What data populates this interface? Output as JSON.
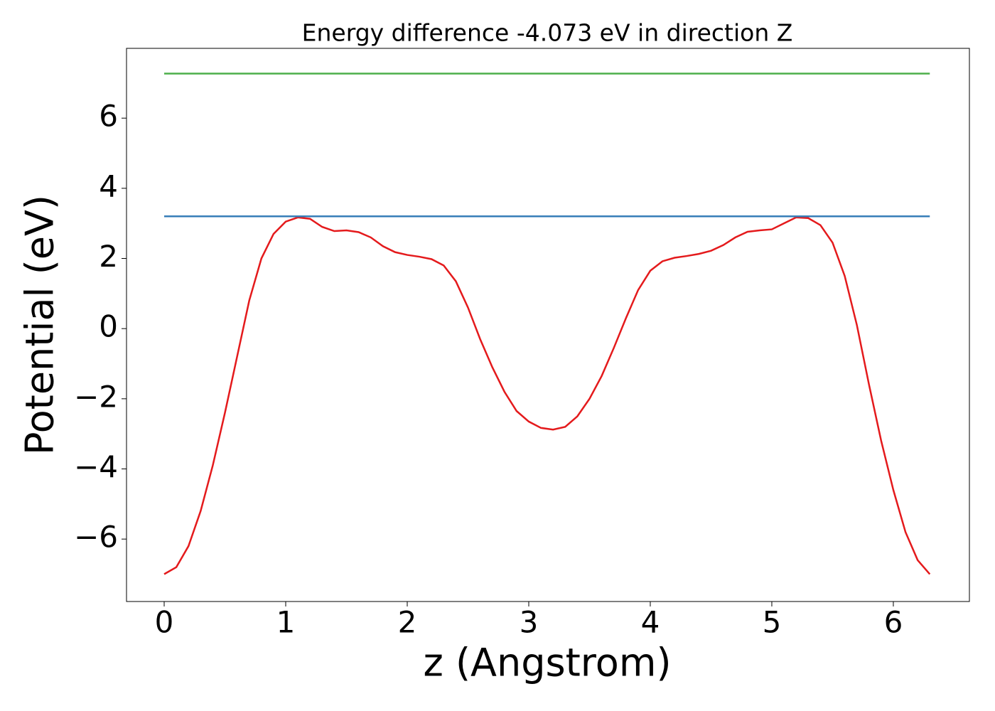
{
  "chart_data": {
    "type": "line",
    "title": "Energy difference -4.073 eV in direction Z",
    "xlabel": "z (Angstrom)",
    "ylabel": "Potential (eV)",
    "xlim": [
      -0.31,
      6.626
    ],
    "ylim": [
      -7.78,
      7.99
    ],
    "xticks": [
      0,
      1,
      2,
      3,
      4,
      5,
      6
    ],
    "yticks": [
      {
        "value": -6,
        "label": "−6"
      },
      {
        "value": -4,
        "label": "−4"
      },
      {
        "value": -2,
        "label": "−2"
      },
      0,
      2,
      4,
      6
    ],
    "series": [
      {
        "color": "#e41a1c",
        "x": [
          0,
          0.1,
          0.2,
          0.3,
          0.4,
          0.5,
          0.6,
          0.7,
          0.8,
          0.9,
          1.0,
          1.1,
          1.2,
          1.3,
          1.4,
          1.5,
          1.6,
          1.7,
          1.8,
          1.9,
          2.0,
          2.1,
          2.2,
          2.3,
          2.4,
          2.5,
          2.6,
          2.7,
          2.8,
          2.9,
          3.0,
          3.1,
          3.2,
          3.3,
          3.4,
          3.5,
          3.6,
          3.7,
          3.8,
          3.9,
          4.0,
          4.1,
          4.2,
          4.3,
          4.4,
          4.5,
          4.6,
          4.7,
          4.8,
          4.9,
          5.0,
          5.1,
          5.2,
          5.3,
          5.4,
          5.5,
          5.6,
          5.7,
          5.8,
          5.9,
          6.0,
          6.1,
          6.2,
          6.3
        ],
        "values": [
          -7.0,
          -6.8,
          -6.2,
          -5.2,
          -3.9,
          -2.4,
          -0.8,
          0.8,
          2.0,
          2.7,
          3.05,
          3.17,
          3.13,
          2.9,
          2.78,
          2.8,
          2.75,
          2.6,
          2.35,
          2.18,
          2.1,
          2.05,
          1.98,
          1.8,
          1.35,
          0.6,
          -0.3,
          -1.1,
          -1.8,
          -2.35,
          -2.65,
          -2.83,
          -2.88,
          -2.8,
          -2.5,
          -2.0,
          -1.35,
          -0.55,
          0.3,
          1.1,
          1.65,
          1.92,
          2.02,
          2.07,
          2.13,
          2.22,
          2.38,
          2.6,
          2.76,
          2.8,
          2.83,
          3.0,
          3.17,
          3.15,
          2.95,
          2.45,
          1.5,
          0.1,
          -1.6,
          -3.2,
          -4.6,
          -5.8,
          -6.6,
          -7.0
        ]
      },
      {
        "color": "#377eb8",
        "x": [
          0,
          6.3
        ],
        "values": [
          3.2,
          3.2
        ]
      },
      {
        "color": "#4daf4a",
        "x": [
          0,
          6.3
        ],
        "values": [
          7.27,
          7.27
        ]
      }
    ]
  }
}
